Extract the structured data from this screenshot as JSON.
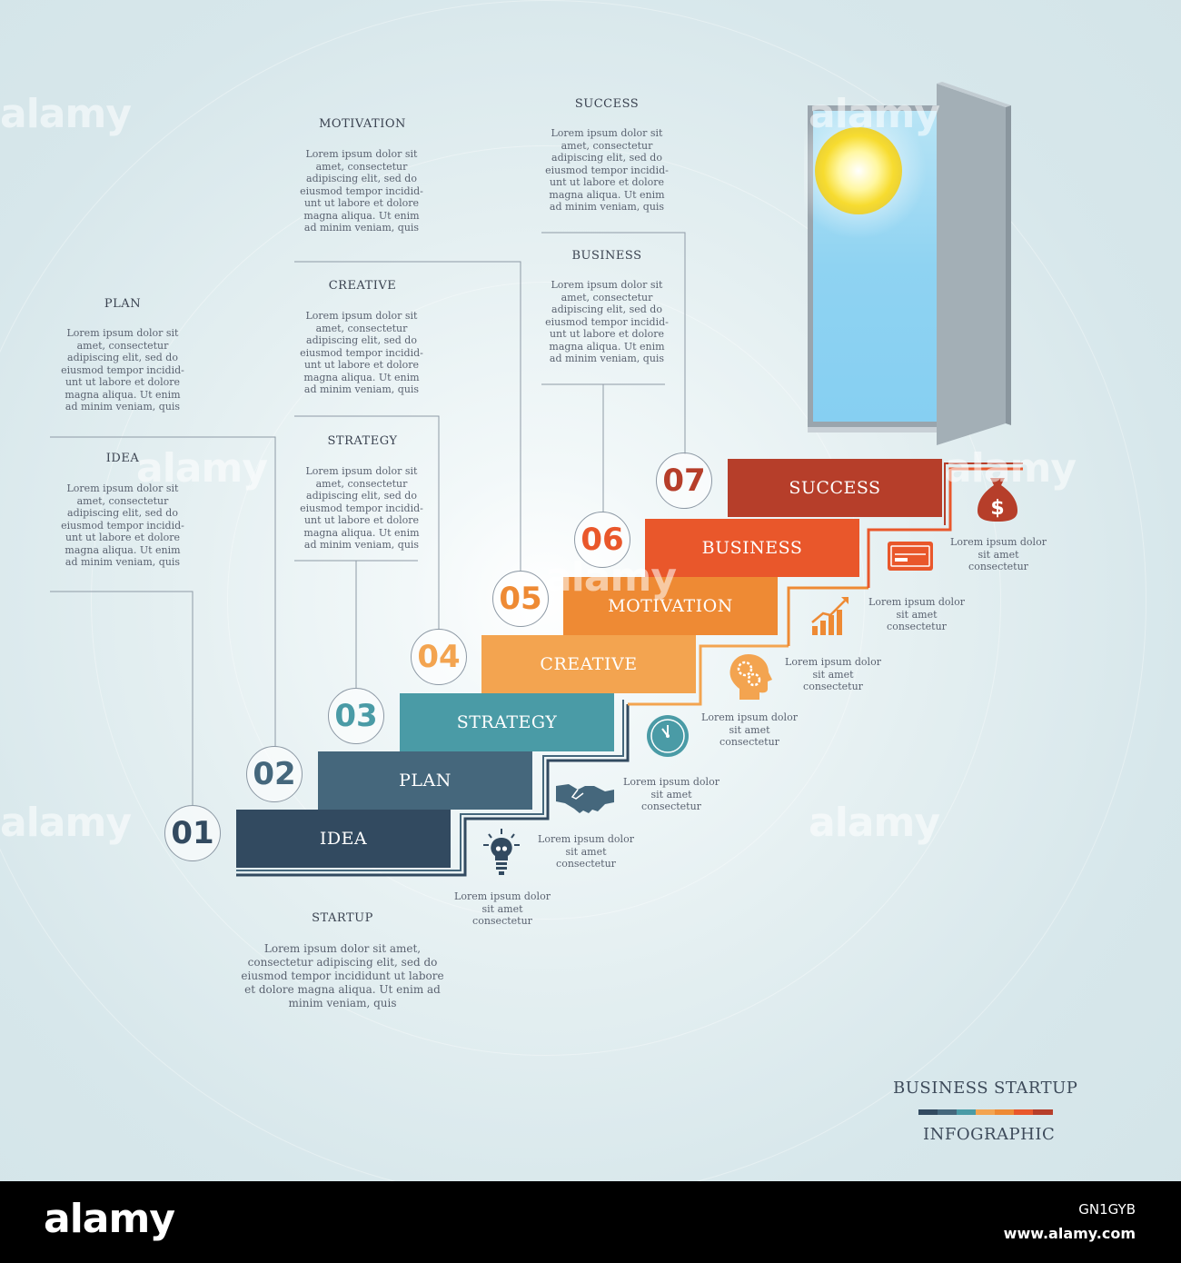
{
  "brand": {
    "footer_logo": "alamy",
    "image_id": "GN1GYB",
    "url": "www.alamy.com",
    "watermark": "alamy"
  },
  "colors": {
    "idea": "#324a60",
    "plan": "#45677c",
    "strategy": "#4a9ba6",
    "creative": "#f3a450",
    "motivation": "#ee8a34",
    "business": "#e9572b",
    "success": "#b63e2a"
  },
  "title": {
    "line1a": "BUSINESS",
    "line1b": "STARTUP",
    "line2": "INFOGRAPHIC"
  },
  "startup": {
    "heading": "STARTUP",
    "body": "Lorem ipsum dolor sit amet, consectetur adipiscing elit, sed do eiusmod tempor incididunt ut labore et dolore magna aliqua. Ut enim ad minim veniam, quis"
  },
  "lorem_block": "Lorem ipsum dolor sit amet, consectetur adipiscing elit, sed do eiusmod tempor incidid-unt ut labore et dolore magna aliqua. Ut enim ad minim veniam, quis",
  "steps": [
    {
      "number": "01",
      "label": "IDEA",
      "heading": "IDEA",
      "icon": "lightbulb-icon",
      "icon_text": "Lorem ipsum dolor sit amet consectetur"
    },
    {
      "number": "02",
      "label": "PLAN",
      "heading": "PLAN",
      "icon": "handshake-icon",
      "icon_text": "Lorem ipsum dolor sit amet consectetur"
    },
    {
      "number": "03",
      "label": "STRATEGY",
      "heading": "STRATEGY",
      "icon": "clock-icon",
      "icon_text": "Lorem ipsum dolor sit amet consectetur"
    },
    {
      "number": "04",
      "label": "CREATIVE",
      "heading": "CREATIVE",
      "icon": "head-gears-icon",
      "icon_text": "Lorem ipsum dolor sit amet consectetur"
    },
    {
      "number": "05",
      "label": "MOTIVATION",
      "heading": "MOTIVATION",
      "icon": "growth-chart-icon",
      "icon_text": "Lorem ipsum dolor sit amet consectetur"
    },
    {
      "number": "06",
      "label": "BUSINESS",
      "heading": "BUSINESS",
      "icon": "credit-card-icon",
      "icon_text": "Lorem ipsum dolor sit amet consectetur"
    },
    {
      "number": "07",
      "label": "SUCCESS",
      "heading": "SUCCESS",
      "icon": "money-bag-icon",
      "icon_text": "Lorem ipsum dolor sit amet consectetur"
    }
  ]
}
